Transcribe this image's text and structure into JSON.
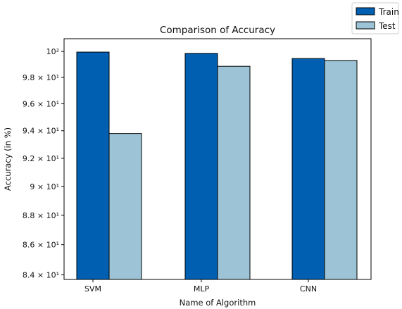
{
  "chart_data": {
    "type": "bar",
    "title": "Comparison of Accuracy",
    "xlabel": "Name of Algorithm",
    "ylabel": "Accuracy (in %)",
    "y_scale": "log",
    "ylim": [
      83.7,
      101.0
    ],
    "categories": [
      "SVM",
      "MLP",
      "CNN"
    ],
    "series": [
      {
        "name": "Train",
        "color": "#005fb0",
        "values": [
          99.95,
          99.85,
          99.45
        ]
      },
      {
        "name": "Test",
        "color": "#9dc3d6",
        "values": [
          93.8,
          98.85,
          99.3
        ]
      }
    ],
    "yticks": [
      {
        "value": 84,
        "label": "8.4 × 10¹"
      },
      {
        "value": 86,
        "label": "8.6 × 10¹"
      },
      {
        "value": 88,
        "label": "8.8 × 10¹"
      },
      {
        "value": 90,
        "label": "9 × 10¹"
      },
      {
        "value": 92,
        "label": "9.2 × 10¹"
      },
      {
        "value": 94,
        "label": "9.4 × 10¹"
      },
      {
        "value": 96,
        "label": "9.6 × 10¹"
      },
      {
        "value": 98,
        "label": "9.8 × 10¹"
      },
      {
        "value": 100,
        "label": "10²"
      }
    ],
    "grid": false,
    "legend_position": "top-right"
  }
}
